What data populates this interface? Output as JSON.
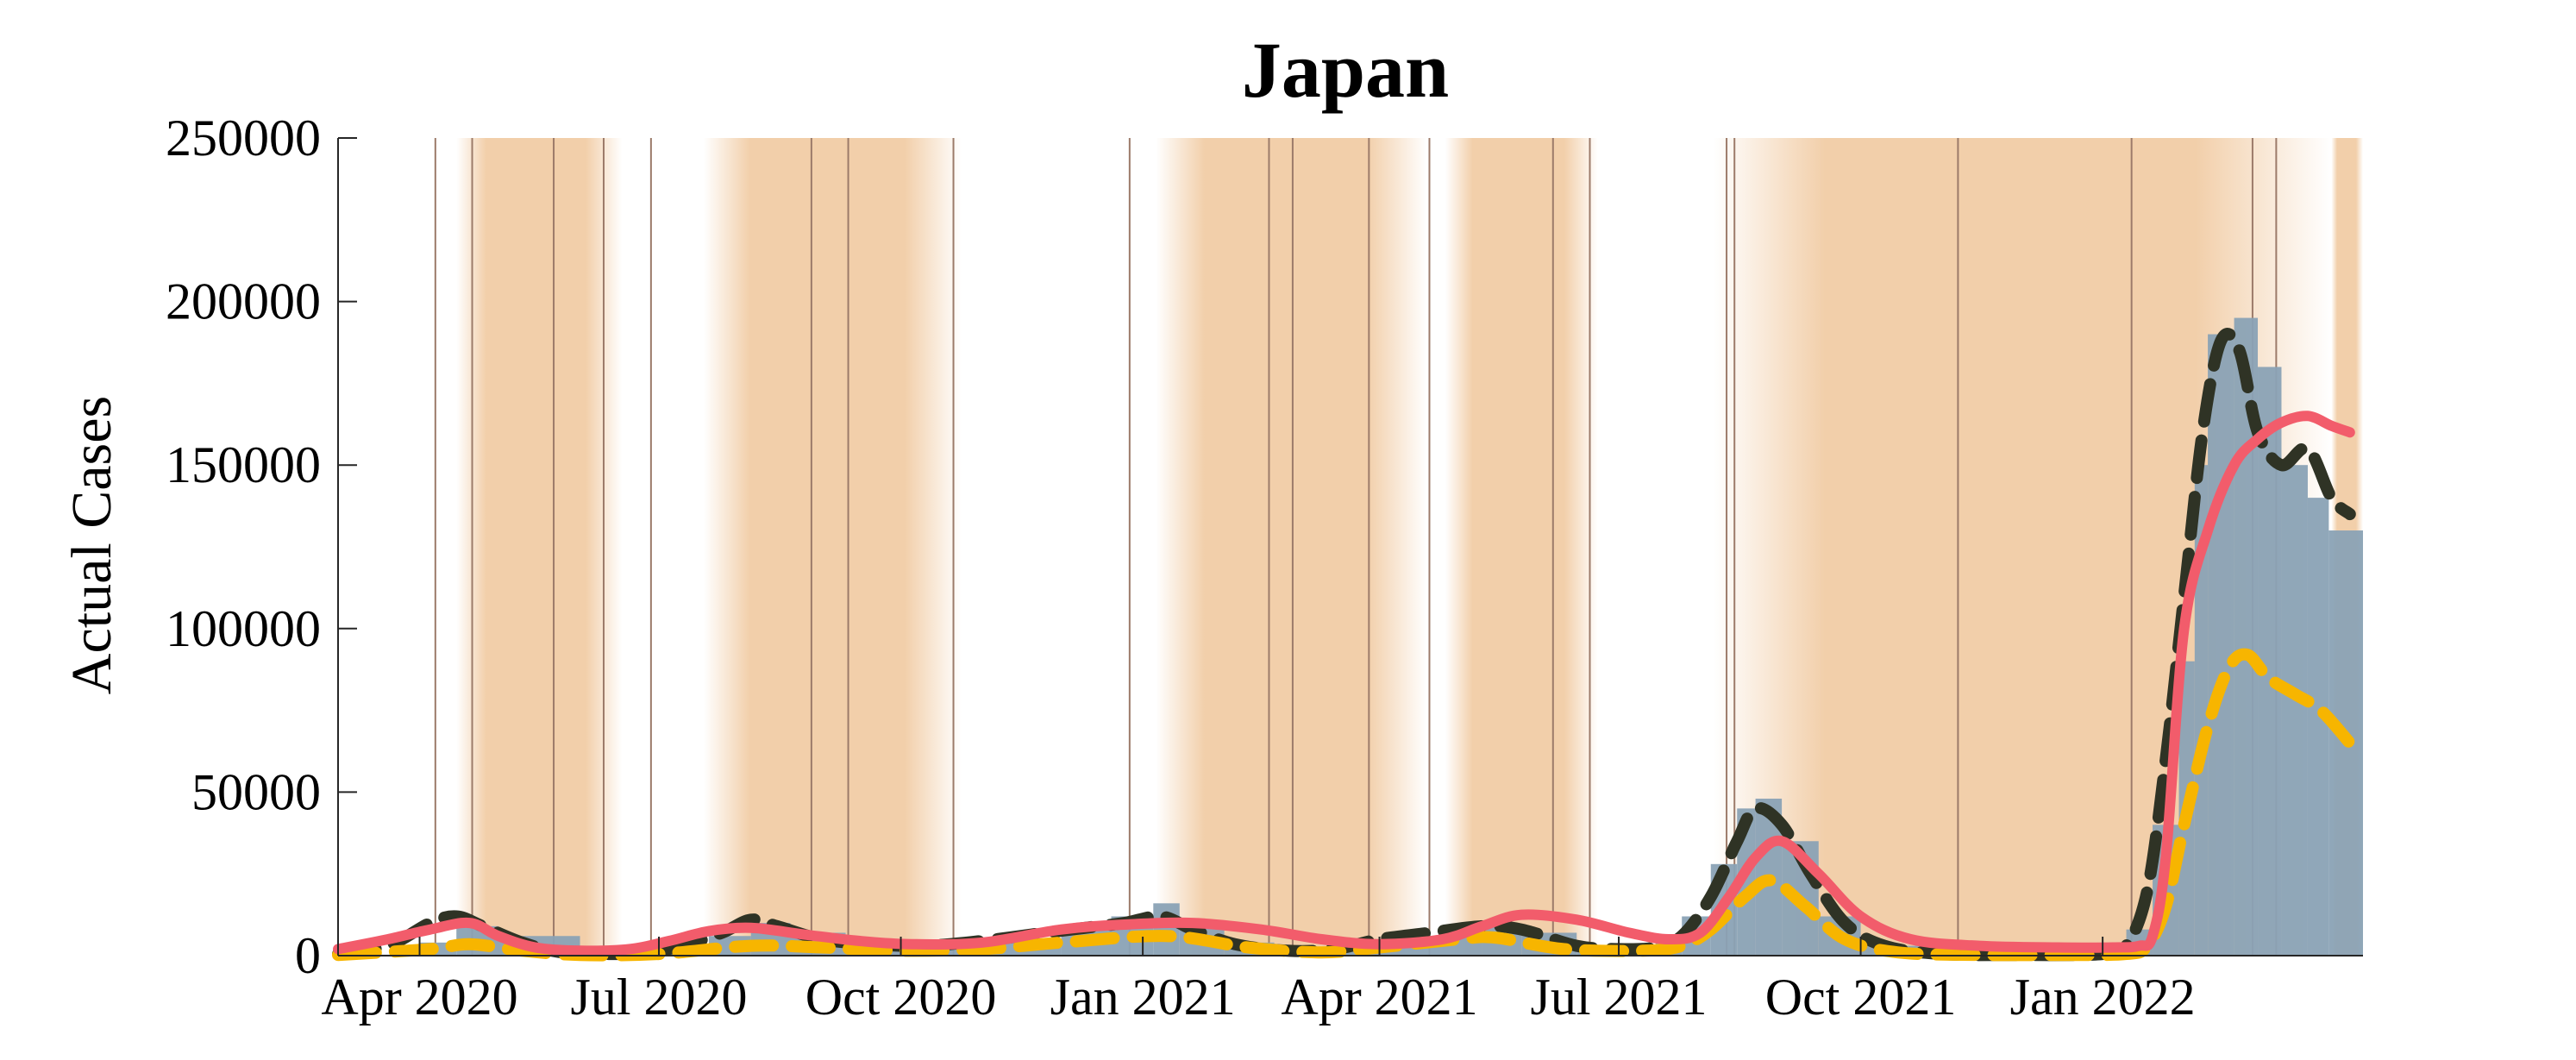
{
  "chart_data": {
    "type": "line",
    "title": "Japan",
    "xlabel": "",
    "ylabel": "Actual Cases",
    "xlim": [
      "2020-03-01",
      "2022-04-10"
    ],
    "ylim": [
      0,
      250000
    ],
    "yticks": [
      0,
      50000,
      100000,
      150000,
      200000,
      250000
    ],
    "xticks": [
      {
        "date": "2020-04-01",
        "label": "Apr 2020"
      },
      {
        "date": "2020-07-01",
        "label": "Jul 2020"
      },
      {
        "date": "2020-10-01",
        "label": "Oct 2020"
      },
      {
        "date": "2021-01-01",
        "label": "Jan 2021"
      },
      {
        "date": "2021-04-01",
        "label": "Apr 2021"
      },
      {
        "date": "2021-07-01",
        "label": "Jul 2021"
      },
      {
        "date": "2021-10-01",
        "label": "Oct 2021"
      },
      {
        "date": "2022-01-01",
        "label": "Jan 2022"
      }
    ],
    "grid": false,
    "legend": "none",
    "colors": {
      "bars": "#8aa2b5",
      "dark_dashed": "#2f3325",
      "yellow_dashed": "#f7b500",
      "red_solid": "#f25c6b",
      "shade": "#f2cfaa",
      "vline": "#9c7b6a"
    },
    "shaded_periods": [
      {
        "start": "2020-04-15",
        "end": "2020-06-17"
      },
      {
        "start": "2020-07-18",
        "end": "2020-10-24"
      },
      {
        "start": "2021-01-06",
        "end": "2021-04-19"
      },
      {
        "start": "2021-04-26",
        "end": "2021-06-23"
      },
      {
        "start": "2021-08-06",
        "end": "2022-03-29"
      },
      {
        "start": "2022-03-29",
        "end": "2022-04-10"
      }
    ],
    "event_lines": [
      "2020-04-07",
      "2020-04-21",
      "2020-05-22",
      "2020-06-10",
      "2020-06-28",
      "2020-08-28",
      "2020-09-11",
      "2020-10-21",
      "2020-12-27",
      "2021-02-18",
      "2021-02-27",
      "2021-03-28",
      "2021-04-20",
      "2021-06-06",
      "2021-06-20",
      "2021-08-11",
      "2021-08-14",
      "2021-11-07",
      "2022-01-12",
      "2022-02-27",
      "2022-03-08"
    ],
    "bars": {
      "name": "",
      "x": [
        "2020-03-01",
        "2020-04-01",
        "2020-04-15",
        "2020-05-01",
        "2020-06-01",
        "2020-07-01",
        "2020-07-20",
        "2020-08-05",
        "2020-08-20",
        "2020-09-10",
        "2020-10-01",
        "2020-11-01",
        "2020-12-01",
        "2020-12-20",
        "2021-01-05",
        "2021-01-15",
        "2021-02-01",
        "2021-02-20",
        "2021-03-15",
        "2021-04-01",
        "2021-04-20",
        "2021-05-10",
        "2021-05-25",
        "2021-06-15",
        "2021-07-01",
        "2021-07-15",
        "2021-07-25",
        "2021-08-05",
        "2021-08-15",
        "2021-08-22",
        "2021-09-01",
        "2021-09-15",
        "2021-10-01",
        "2021-11-01",
        "2021-12-01",
        "2022-01-01",
        "2022-01-10",
        "2022-01-20",
        "2022-01-30",
        "2022-02-05",
        "2022-02-10",
        "2022-02-20",
        "2022-03-01",
        "2022-03-10",
        "2022-03-20",
        "2022-03-28"
      ],
      "values": [
        300,
        4000,
        9000,
        6000,
        600,
        1500,
        6000,
        10000,
        7000,
        4000,
        3500,
        5000,
        8000,
        12000,
        16000,
        9000,
        4000,
        2000,
        1500,
        3000,
        6000,
        9000,
        7000,
        3000,
        2500,
        5000,
        12000,
        28000,
        45000,
        48000,
        35000,
        12000,
        3000,
        300,
        200,
        500,
        8000,
        40000,
        90000,
        150000,
        190000,
        195000,
        180000,
        150000,
        140000,
        130000
      ]
    },
    "series": [
      {
        "name": "",
        "style": "dark-dashed",
        "x": [
          "2020-03-01",
          "2020-03-20",
          "2020-04-05",
          "2020-04-15",
          "2020-04-25",
          "2020-05-10",
          "2020-05-25",
          "2020-06-10",
          "2020-06-25",
          "2020-07-10",
          "2020-07-25",
          "2020-08-05",
          "2020-08-15",
          "2020-09-01",
          "2020-09-20",
          "2020-10-10",
          "2020-11-01",
          "2020-11-20",
          "2020-12-10",
          "2020-12-25",
          "2021-01-08",
          "2021-01-20",
          "2021-02-05",
          "2021-02-25",
          "2021-03-15",
          "2021-04-01",
          "2021-04-20",
          "2021-05-10",
          "2021-05-25",
          "2021-06-15",
          "2021-07-01",
          "2021-07-15",
          "2021-07-25",
          "2021-08-05",
          "2021-08-15",
          "2021-08-22",
          "2021-09-01",
          "2021-09-12",
          "2021-09-25",
          "2021-10-10",
          "2021-11-01",
          "2021-12-01",
          "2022-01-01",
          "2022-01-10",
          "2022-01-18",
          "2022-01-25",
          "2022-02-01",
          "2022-02-08",
          "2022-02-15",
          "2022-02-22",
          "2022-03-01",
          "2022-03-10",
          "2022-03-20",
          "2022-03-29",
          "2022-04-05"
        ],
        "y": [
          500,
          3000,
          10000,
          12000,
          9000,
          4000,
          1000,
          500,
          800,
          3000,
          7000,
          11000,
          9000,
          5000,
          3500,
          3000,
          4500,
          6500,
          8500,
          10000,
          12000,
          8000,
          3500,
          1500,
          2000,
          5000,
          7000,
          9000,
          8000,
          3000,
          2000,
          2500,
          6000,
          18000,
          35000,
          45000,
          40000,
          25000,
          10000,
          3000,
          500,
          200,
          500,
          3000,
          20000,
          60000,
          110000,
          160000,
          188000,
          185000,
          160000,
          150000,
          155000,
          140000,
          135000
        ]
      },
      {
        "name": "",
        "style": "yellow-dashed",
        "x": [
          "2020-03-01",
          "2020-04-05",
          "2020-04-20",
          "2020-05-10",
          "2020-06-01",
          "2020-07-01",
          "2020-08-05",
          "2020-09-01",
          "2020-10-01",
          "2020-11-01",
          "2020-12-01",
          "2021-01-10",
          "2021-02-10",
          "2021-03-10",
          "2021-04-01",
          "2021-05-01",
          "2021-05-15",
          "2021-06-10",
          "2021-07-10",
          "2021-07-25",
          "2021-08-05",
          "2021-08-18",
          "2021-08-28",
          "2021-09-10",
          "2021-09-25",
          "2021-10-15",
          "2021-11-15",
          "2021-12-15",
          "2022-01-10",
          "2022-01-18",
          "2022-01-25",
          "2022-02-01",
          "2022-02-10",
          "2022-02-18",
          "2022-02-25",
          "2022-03-05",
          "2022-03-15",
          "2022-03-25",
          "2022-04-05"
        ],
        "y": [
          200,
          2000,
          3500,
          1500,
          200,
          500,
          3000,
          2500,
          1500,
          2000,
          4000,
          6000,
          2500,
          1000,
          2500,
          5000,
          5500,
          2000,
          1500,
          3000,
          8000,
          18000,
          23000,
          15000,
          5000,
          1000,
          200,
          200,
          500,
          3000,
          15000,
          40000,
          70000,
          88000,
          92000,
          85000,
          80000,
          75000,
          65000
        ]
      },
      {
        "name": "",
        "style": "red-solid",
        "x": [
          "2020-03-01",
          "2020-03-20",
          "2020-04-05",
          "2020-04-20",
          "2020-05-01",
          "2020-05-15",
          "2020-06-01",
          "2020-06-20",
          "2020-07-05",
          "2020-07-20",
          "2020-08-05",
          "2020-08-25",
          "2020-09-15",
          "2020-10-05",
          "2020-11-01",
          "2020-12-01",
          "2020-12-25",
          "2021-01-20",
          "2021-02-15",
          "2021-03-10",
          "2021-04-01",
          "2021-04-25",
          "2021-05-10",
          "2021-05-25",
          "2021-06-15",
          "2021-07-05",
          "2021-07-20",
          "2021-08-01",
          "2021-08-12",
          "2021-08-22",
          "2021-09-01",
          "2021-09-15",
          "2021-10-01",
          "2021-10-20",
          "2021-11-15",
          "2021-12-15",
          "2022-01-05",
          "2022-01-15",
          "2022-01-20",
          "2022-01-25",
          "2022-02-01",
          "2022-02-10",
          "2022-02-20",
          "2022-03-01",
          "2022-03-10",
          "2022-03-20",
          "2022-03-29",
          "2022-04-05"
        ],
        "y": [
          2000,
          5000,
          8000,
          10000,
          6000,
          2500,
          1500,
          2000,
          4500,
          7500,
          8500,
          6500,
          4500,
          3500,
          4000,
          8000,
          9500,
          10000,
          8000,
          5000,
          3500,
          5000,
          9000,
          12500,
          11000,
          7000,
          5000,
          7000,
          18000,
          30000,
          35000,
          25000,
          12000,
          5000,
          3000,
          2500,
          2500,
          3000,
          6000,
          30000,
          100000,
          130000,
          150000,
          158000,
          163000,
          165000,
          162000,
          160000
        ]
      }
    ]
  }
}
